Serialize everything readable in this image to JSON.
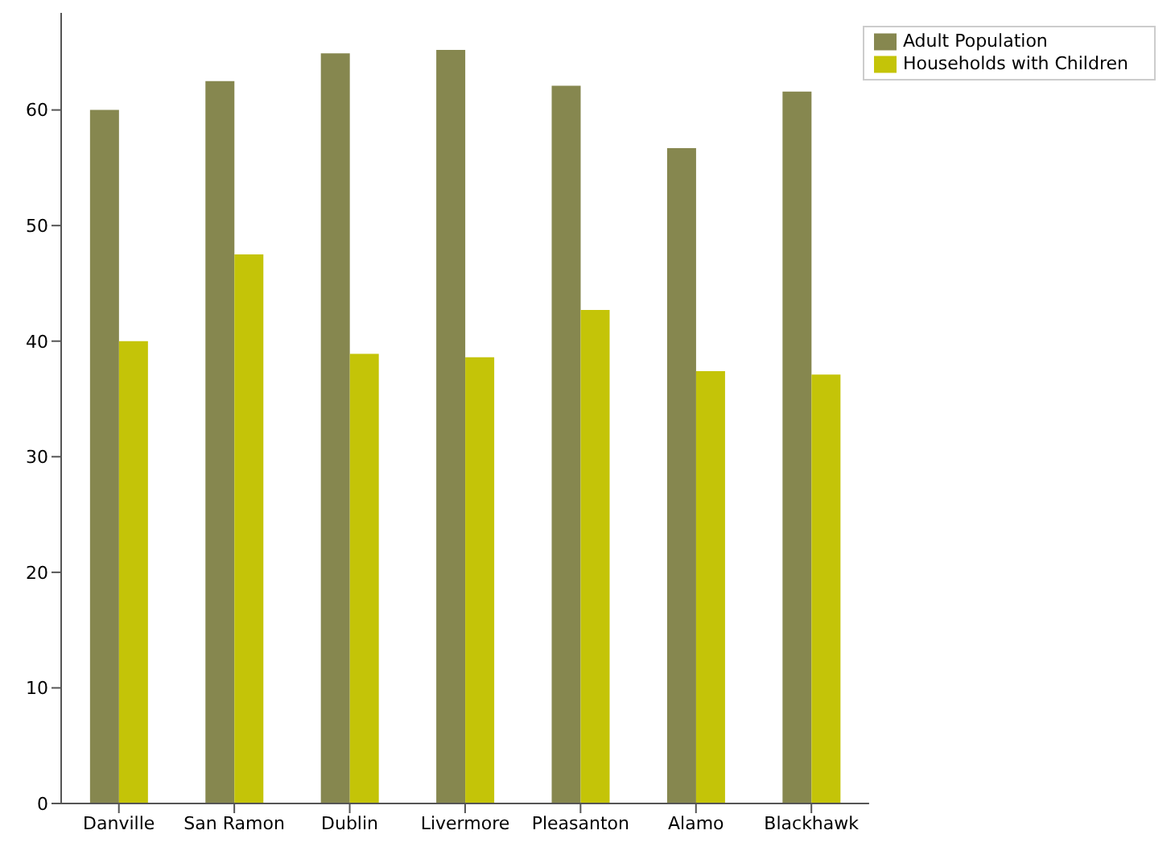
{
  "chart_data": {
    "type": "bar",
    "categories": [
      "Danville",
      "San Ramon",
      "Dublin",
      "Livermore",
      "Pleasanton",
      "Alamo",
      "Blackhawk"
    ],
    "series": [
      {
        "name": "Adult Population",
        "color": "#86874f",
        "values": [
          60.0,
          62.5,
          64.9,
          65.2,
          62.1,
          56.7,
          61.6
        ]
      },
      {
        "name": "Households with Children",
        "color": "#c4c408",
        "values": [
          40.0,
          47.5,
          38.9,
          38.6,
          42.7,
          37.4,
          37.1
        ]
      }
    ],
    "ylim": [
      0,
      68.4
    ],
    "yticks": [
      0,
      10,
      20,
      30,
      40,
      50,
      60
    ],
    "grid": false,
    "legend": "top right"
  }
}
